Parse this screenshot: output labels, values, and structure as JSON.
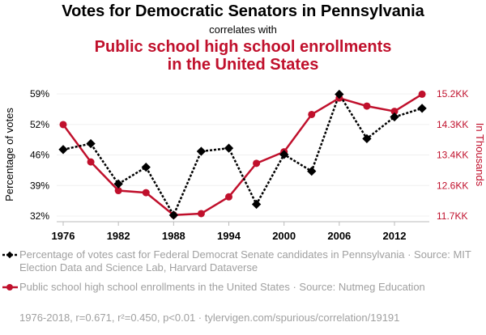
{
  "title": "Votes for Democratic Senators in Pennsylvania",
  "subtitle": "correlates with",
  "title2_line1": "Public school high school enrollments",
  "title2_line2": "in the United States",
  "legend": [
    "Percentage of votes cast for Federal Democrat Senate candidates in Pennsylvania · Source: MIT Election Data and Science Lab, Harvard Dataverse",
    "Public school high school enrollments in the United States · Source: Nutmeg Education"
  ],
  "footer": "1976-2018, r=0.671, r²=0.450, p<0.01 · tylervigen.com/spurious/correlation/19191",
  "colors": {
    "series1": "#000000",
    "series2": "#c0102c"
  },
  "chart_data": {
    "type": "line",
    "xlabel": "",
    "ylabel": "Percentage of votes",
    "ylabel_right": "In Thousands",
    "x": [
      1976,
      1979,
      1982,
      1985,
      1988,
      1991,
      1994,
      1997,
      2000,
      2003,
      2006,
      2009,
      2012,
      2015
    ],
    "xticks": [
      "1976",
      "1982",
      "1988",
      "1994",
      "2000",
      "2006",
      "2012"
    ],
    "xtick_values": [
      1976,
      1982,
      1988,
      1994,
      2000,
      2006,
      2012
    ],
    "yticks_left": [
      "59%",
      "52%",
      "46%",
      "39%",
      "32%"
    ],
    "yticks_right": [
      "15.2KK",
      "14.3KK",
      "13.4KK",
      "12.6KK",
      "11.7KK"
    ],
    "ylim_left": [
      32,
      59
    ],
    "ylim_right": [
      11.7,
      15.2
    ],
    "series": [
      {
        "name": "Percentage of votes (Democrat, PA Senate)",
        "axis": "left",
        "values": [
          46.7,
          48.0,
          39.1,
          42.8,
          32.2,
          46.3,
          47.0,
          34.6,
          45.6,
          41.9,
          58.9,
          49.1,
          53.9,
          55.8
        ]
      },
      {
        "name": "Public school high school enrollments (thousands)",
        "axis": "right",
        "values": [
          14.32,
          13.25,
          12.43,
          12.37,
          11.73,
          11.77,
          12.25,
          13.21,
          13.54,
          14.61,
          15.08,
          14.85,
          14.7,
          15.19
        ]
      }
    ]
  }
}
